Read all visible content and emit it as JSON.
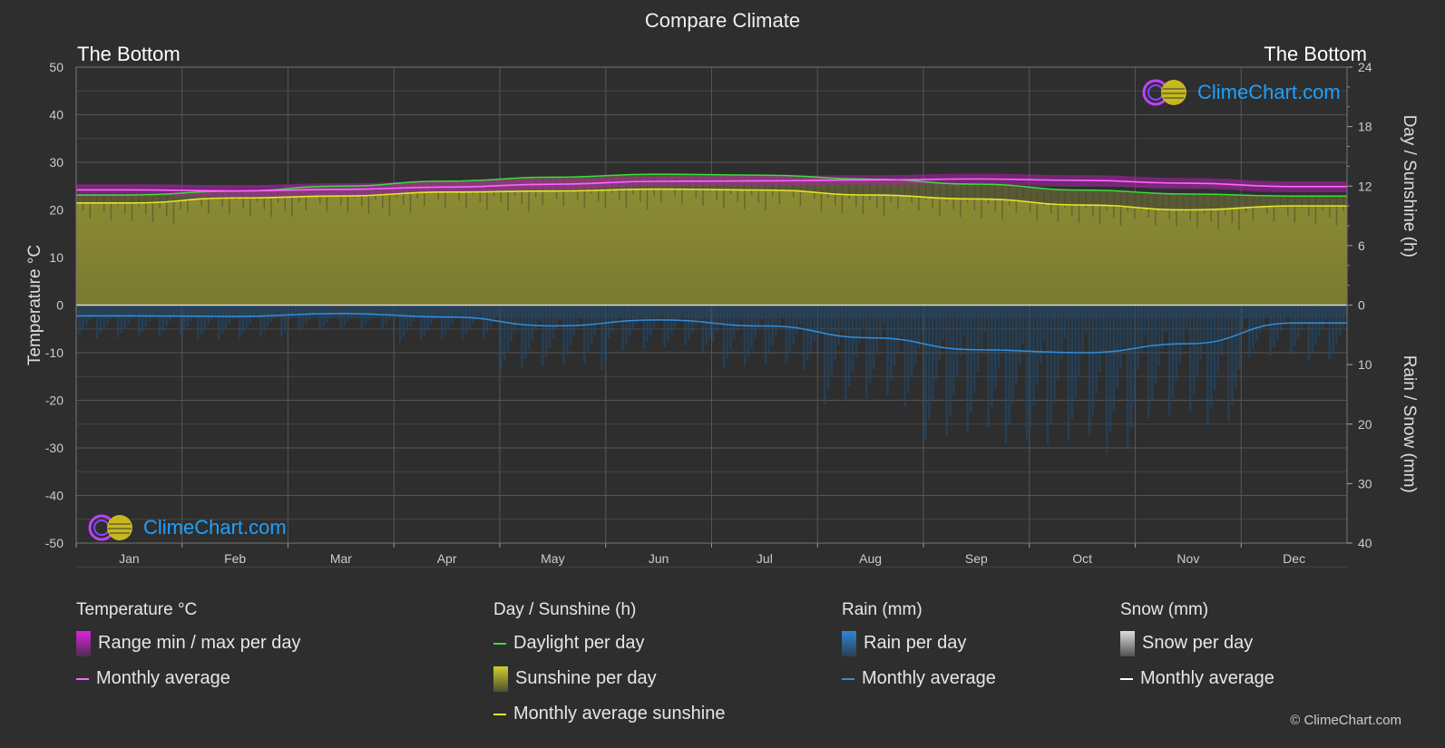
{
  "header": {
    "title": "Compare Climate",
    "location_left": "The Bottom",
    "location_right": "The Bottom"
  },
  "chart_data": {
    "type": "area",
    "title": "Compare Climate",
    "categories": [
      "Jan",
      "Feb",
      "Mar",
      "Apr",
      "May",
      "Jun",
      "Jul",
      "Aug",
      "Sep",
      "Oct",
      "Nov",
      "Dec"
    ],
    "left_axis": {
      "label": "Temperature °C",
      "range": [
        -50,
        50
      ],
      "ticks": [
        50,
        40,
        30,
        20,
        10,
        0,
        -10,
        -20,
        -30,
        -40,
        -50
      ]
    },
    "right_axis_top": {
      "label": "Day / Sunshine (h)",
      "range": [
        0,
        24
      ],
      "ticks": [
        24,
        18,
        12,
        6,
        0
      ]
    },
    "right_axis_bottom": {
      "label": "Rain / Snow (mm)",
      "range": [
        0,
        40
      ],
      "ticks": [
        0,
        10,
        20,
        30,
        40
      ]
    },
    "series": [
      {
        "name": "Daylight per day",
        "unit": "h",
        "color": "#3ddc3d",
        "values": [
          11.1,
          11.5,
          12.0,
          12.5,
          12.9,
          13.2,
          13.1,
          12.7,
          12.2,
          11.6,
          11.2,
          11.0
        ]
      },
      {
        "name": "Monthly average sunshine",
        "unit": "h",
        "color": "#e5e52a",
        "values": [
          10.3,
          10.8,
          11.0,
          11.4,
          11.5,
          11.7,
          11.6,
          11.1,
          10.7,
          10.1,
          9.6,
          10.0
        ]
      },
      {
        "name": "Monthly average",
        "unit": "°C",
        "group": "Temperature °C",
        "color": "#ff66ff",
        "values": [
          24.2,
          24.0,
          24.3,
          24.8,
          25.4,
          26.0,
          26.1,
          26.3,
          26.5,
          26.2,
          25.6,
          24.9
        ]
      },
      {
        "name": "Range min / max per day",
        "unit": "°C",
        "color": "#dd22dd",
        "min": [
          23.0,
          22.8,
          23.0,
          23.6,
          24.3,
          25.0,
          25.2,
          25.3,
          25.4,
          25.0,
          24.4,
          23.7
        ],
        "max": [
          25.4,
          25.2,
          25.6,
          26.0,
          26.5,
          27.0,
          27.1,
          27.3,
          27.6,
          27.3,
          26.7,
          26.0
        ]
      },
      {
        "name": "Monthly average",
        "unit": "mm",
        "group": "Rain (mm)",
        "color": "#2f8fe0",
        "values": [
          1.8,
          1.9,
          1.4,
          2.0,
          3.5,
          2.5,
          3.5,
          5.5,
          7.5,
          8.0,
          6.5,
          3.0
        ]
      }
    ],
    "legend_placement": "bottom",
    "grid": true
  },
  "legend": {
    "groups": [
      {
        "heading": "Temperature °C",
        "items": [
          {
            "label": "Range min / max per day",
            "swatch": "box",
            "color": "#dd22dd"
          },
          {
            "label": "Monthly average",
            "swatch": "line",
            "color": "#ff66ff"
          }
        ]
      },
      {
        "heading": "Day / Sunshine (h)",
        "items": [
          {
            "label": "Daylight per day",
            "swatch": "line",
            "color": "#3ddc3d"
          },
          {
            "label": "Sunshine per day",
            "swatch": "box",
            "color": "#cfcf30"
          },
          {
            "label": "Monthly average sunshine",
            "swatch": "line",
            "color": "#e5e52a"
          }
        ]
      },
      {
        "heading": "Rain (mm)",
        "items": [
          {
            "label": "Rain per day",
            "swatch": "box",
            "color": "#2a86d6"
          },
          {
            "label": "Monthly average",
            "swatch": "line",
            "color": "#2f8fe0"
          }
        ]
      },
      {
        "heading": "Snow (mm)",
        "items": [
          {
            "label": "Snow per day",
            "swatch": "box",
            "color": "#dddddd"
          },
          {
            "label": "Monthly average",
            "swatch": "line",
            "color": "#ffffff"
          }
        ]
      }
    ]
  },
  "branding": {
    "logo_text": "ClimeChart.com",
    "copyright": "© ClimeChart.com"
  }
}
